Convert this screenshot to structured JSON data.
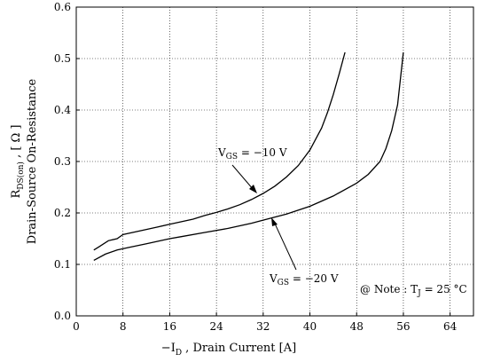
{
  "chart_data": {
    "type": "line",
    "xlabel": {
      "prefix": "−I",
      "sub": "D",
      "rest": " , Drain Current  [A]"
    },
    "ylabel": {
      "line1_prefix": "R",
      "line1_sub": "DS(on)",
      "line1_rest": " ,  [ Ω ]",
      "line2": "Drain-Source On-Resistance"
    },
    "xlim": [
      0,
      68
    ],
    "ylim": [
      0,
      0.6
    ],
    "xticks": [
      "0",
      "8",
      "16",
      "24",
      "32",
      "40",
      "48",
      "56",
      "64"
    ],
    "yticks": [
      "0.0",
      "0.1",
      "0.2",
      "0.3",
      "0.4",
      "0.5",
      "0.6"
    ],
    "grid": true,
    "series": [
      {
        "name": "VGS = −10 V",
        "x": [
          3,
          4,
          5.5,
          7,
          8,
          10,
          12,
          14,
          16,
          18,
          20,
          22,
          24,
          26,
          28,
          30,
          32,
          34,
          36,
          38,
          40,
          42,
          43,
          44,
          45,
          46
        ],
        "y": [
          0.128,
          0.135,
          0.146,
          0.15,
          0.158,
          0.163,
          0.168,
          0.173,
          0.178,
          0.183,
          0.188,
          0.195,
          0.201,
          0.208,
          0.216,
          0.226,
          0.238,
          0.252,
          0.27,
          0.292,
          0.322,
          0.365,
          0.395,
          0.43,
          0.47,
          0.512
        ]
      },
      {
        "name": "VGS = −20 V",
        "x": [
          3,
          5,
          7,
          9,
          12,
          16,
          18,
          22,
          26,
          30,
          32,
          36,
          40,
          44,
          48,
          50,
          52,
          53,
          54,
          55,
          56
        ],
        "y": [
          0.108,
          0.12,
          0.128,
          0.133,
          0.14,
          0.15,
          0.154,
          0.162,
          0.17,
          0.18,
          0.186,
          0.198,
          0.213,
          0.233,
          0.258,
          0.275,
          0.3,
          0.325,
          0.36,
          0.41,
          0.512
        ]
      }
    ],
    "annotations": {
      "v10": {
        "prefix": "V",
        "sub": "GS",
        "rest": " = −10 V"
      },
      "v20": {
        "prefix": "V",
        "sub": "GS",
        "rest": " = −20 V"
      },
      "note": {
        "prefix": "@ Note : T",
        "sub": "J",
        "rest": " = 25 °C"
      }
    }
  }
}
